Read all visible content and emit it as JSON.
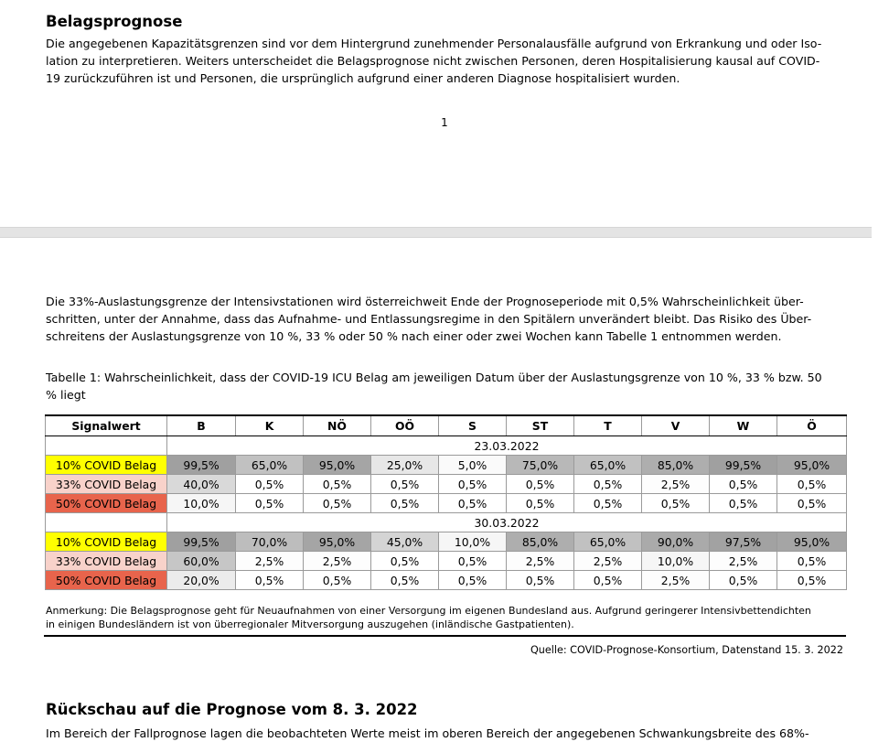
{
  "page1": {
    "heading": "Belagsprognose",
    "lines": [
      "Die angegebenen Kapazitätsgrenzen sind vor dem Hintergrund zunehmender Personalausfälle aufgrund von Erkrankung und oder Iso-",
      "lation zu interpretieren. Weiters unterscheidet die Belagsprognose nicht zwischen Personen, deren Hospitalisierung kausal auf COVID-",
      "19 zurückzuführen ist und Personen, die ursprünglich aufgrund einer anderen Diagnose hospitalisiert wurden."
    ],
    "page_number": "1"
  },
  "page2": {
    "lines": [
      "Die 33%-Auslastungsgrenze der Intensivstationen wird österreichweit Ende der Prognoseperiode mit 0,5% Wahrscheinlichkeit über-",
      "schritten, unter der Annahme, dass das Aufnahme- und Entlassungsregime in den Spitälern unverändert bleibt. Das Risiko des Über-",
      "schreitens der Auslastungsgrenze von 10 %, 33 % oder 50 % nach einer oder zwei Wochen kann Tabelle 1 entnommen werden."
    ],
    "caption_lines": [
      "Tabelle 1: Wahrscheinlichkeit, dass der COVID-19 ICU Belag am jeweiligen Datum über der Auslastungsgrenze von 10 %, 33 % bzw. 50",
      "% liegt"
    ],
    "table": {
      "columns": [
        "Signalwert",
        "B",
        "K",
        "NÖ",
        "OÖ",
        "S",
        "ST",
        "T",
        "V",
        "W",
        "Ö"
      ],
      "blocks": [
        {
          "date": "23.03.2022",
          "rows": [
            {
              "signal": "10% COVID Belag",
              "signal_color": "#ffff00",
              "values": [
                "99,5%",
                "65,0%",
                "95,0%",
                "25,0%",
                "5,0%",
                "75,0%",
                "65,0%",
                "85,0%",
                "99,5%",
                "95,0%"
              ]
            },
            {
              "signal": "33% COVID Belag",
              "signal_color": "#f8d2ca",
              "values": [
                "40,0%",
                "0,5%",
                "0,5%",
                "0,5%",
                "0,5%",
                "0,5%",
                "0,5%",
                "2,5%",
                "0,5%",
                "0,5%"
              ]
            },
            {
              "signal": "50% COVID Belag",
              "signal_color": "#e8644c",
              "values": [
                "10,0%",
                "0,5%",
                "0,5%",
                "0,5%",
                "0,5%",
                "0,5%",
                "0,5%",
                "0,5%",
                "0,5%",
                "0,5%"
              ]
            }
          ]
        },
        {
          "date": "30.03.2022",
          "rows": [
            {
              "signal": "10% COVID Belag",
              "signal_color": "#ffff00",
              "values": [
                "99,5%",
                "70,0%",
                "95,0%",
                "45,0%",
                "10,0%",
                "85,0%",
                "65,0%",
                "90,0%",
                "97,5%",
                "95,0%"
              ]
            },
            {
              "signal": "33% COVID Belag",
              "signal_color": "#f8d2ca",
              "values": [
                "60,0%",
                "2,5%",
                "2,5%",
                "0,5%",
                "0,5%",
                "2,5%",
                "2,5%",
                "10,0%",
                "2,5%",
                "0,5%"
              ]
            },
            {
              "signal": "50% COVID Belag",
              "signal_color": "#e8644c",
              "values": [
                "20,0%",
                "0,5%",
                "0,5%",
                "0,5%",
                "0,5%",
                "0,5%",
                "0,5%",
                "2,5%",
                "0,5%",
                "0,5%"
              ]
            }
          ]
        }
      ]
    },
    "note_lines": [
      "Anmerkung: Die Belagsprognose geht für Neuaufnahmen von einer Versorgung im eigenen Bundesland aus. Aufgrund geringerer Intensivbettendichten",
      "in einigen Bundesländern ist von überregionaler Mitversorgung auszugehen (inländische Gastpatienten)."
    ],
    "source": "Quelle: COVID-Prognose-Konsortium, Datenstand 15. 3. 2022",
    "heading2": "Rückschau auf die Prognose vom 8. 3. 2022",
    "partial_line": "Im Bereich der Fallprognose lagen die beobachteten Werte meist im oberen Bereich der angegebenen Schwankungsbreite des 68%-"
  }
}
